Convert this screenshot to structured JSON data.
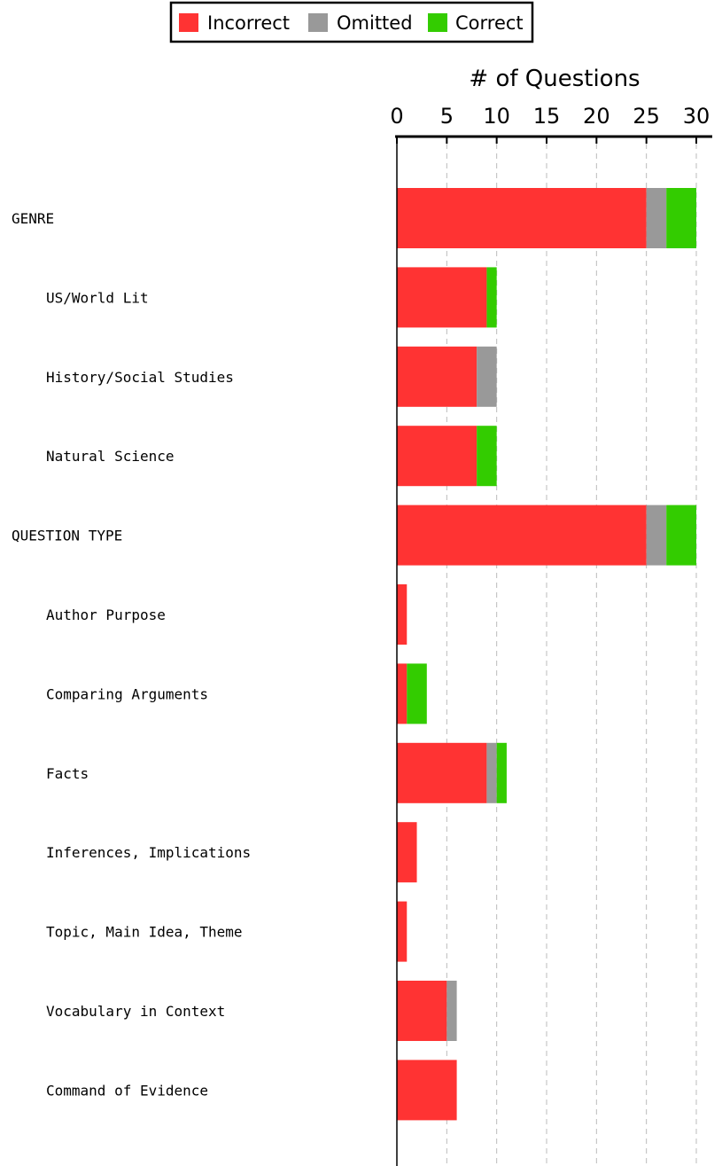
{
  "chart_data": {
    "type": "bar",
    "orientation": "horizontal",
    "stacked": true,
    "xlabel": "# of Questions",
    "xlim": [
      0,
      30
    ],
    "xticks": [
      0,
      5,
      10,
      15,
      20,
      25,
      30
    ],
    "grid": true,
    "legend_position": "top",
    "categories": [
      "GENRE",
      "US/World Lit",
      "History/Social Studies",
      "Natural Science",
      "QUESTION TYPE",
      "Author Purpose",
      "Comparing Arguments",
      "Facts",
      "Inferences, Implications",
      "Topic, Main Idea, Theme",
      "Vocabulary in Context",
      "Command of Evidence"
    ],
    "category_indent": [
      0,
      1,
      1,
      1,
      0,
      1,
      1,
      1,
      1,
      1,
      1,
      1
    ],
    "series": [
      {
        "name": "Incorrect",
        "color": "#ff3333",
        "values": [
          25,
          9,
          8,
          8,
          25,
          1,
          1,
          9,
          2,
          1,
          5,
          6
        ]
      },
      {
        "name": "Omitted",
        "color": "#999999",
        "values": [
          2,
          0,
          2,
          0,
          2,
          0,
          0,
          1,
          0,
          0,
          1,
          0
        ]
      },
      {
        "name": "Correct",
        "color": "#33cc00",
        "values": [
          3,
          1,
          0,
          2,
          3,
          0,
          2,
          1,
          0,
          0,
          0,
          0
        ]
      }
    ]
  }
}
